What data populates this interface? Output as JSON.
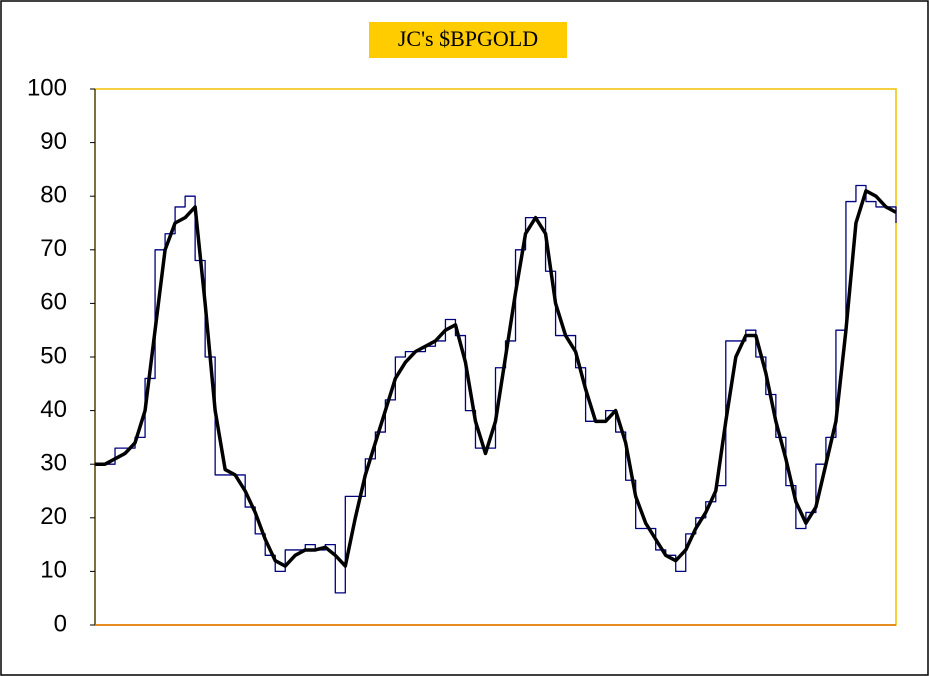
{
  "chart_data": {
    "type": "line",
    "title": "JC's $BPGOLD",
    "series": [
      {
        "color": "#000080",
        "step": true,
        "width": 1.3,
        "values": [
          30,
          30,
          33,
          33,
          35,
          46,
          70,
          73,
          78,
          80,
          68,
          50,
          28,
          28,
          28,
          22,
          17,
          13,
          10,
          14,
          14,
          15,
          14,
          15,
          6,
          24,
          24,
          31,
          36,
          42,
          50,
          51,
          51,
          52,
          53,
          57,
          54,
          40,
          33,
          33,
          48,
          53,
          70,
          76,
          76,
          66,
          54,
          54,
          48,
          38,
          38,
          40,
          36,
          27,
          18,
          18,
          14,
          13,
          10,
          17,
          20,
          23,
          26,
          53,
          53,
          55,
          50,
          43,
          35,
          26,
          18,
          21,
          30,
          35,
          55,
          79,
          82,
          79,
          78,
          78,
          75
        ]
      },
      {
        "color": "#000000",
        "step": false,
        "width": 3.5,
        "values": [
          30,
          30,
          31,
          32,
          34,
          40,
          55,
          70,
          75,
          76,
          78,
          60,
          40,
          29,
          28,
          25,
          21,
          16,
          12,
          11,
          13,
          14,
          14,
          14.5,
          13,
          11,
          20,
          28,
          34,
          40,
          46,
          49,
          51,
          52,
          53,
          55,
          56,
          49,
          38,
          32,
          38,
          50,
          62,
          73,
          76,
          73,
          60,
          54,
          51,
          44,
          38,
          38,
          40,
          34,
          24,
          19,
          16,
          13,
          12,
          14,
          18,
          21,
          25,
          38,
          50,
          54,
          54,
          47,
          38,
          31,
          23,
          19,
          22,
          30,
          38,
          55,
          75,
          81,
          80,
          78,
          77
        ]
      }
    ],
    "ylim": [
      0,
      100
    ],
    "yticks": [
      0,
      10,
      20,
      30,
      40,
      50,
      60,
      70,
      80,
      90,
      100
    ],
    "frame_color": "#f0c000",
    "title_background": "#ffcc00"
  }
}
